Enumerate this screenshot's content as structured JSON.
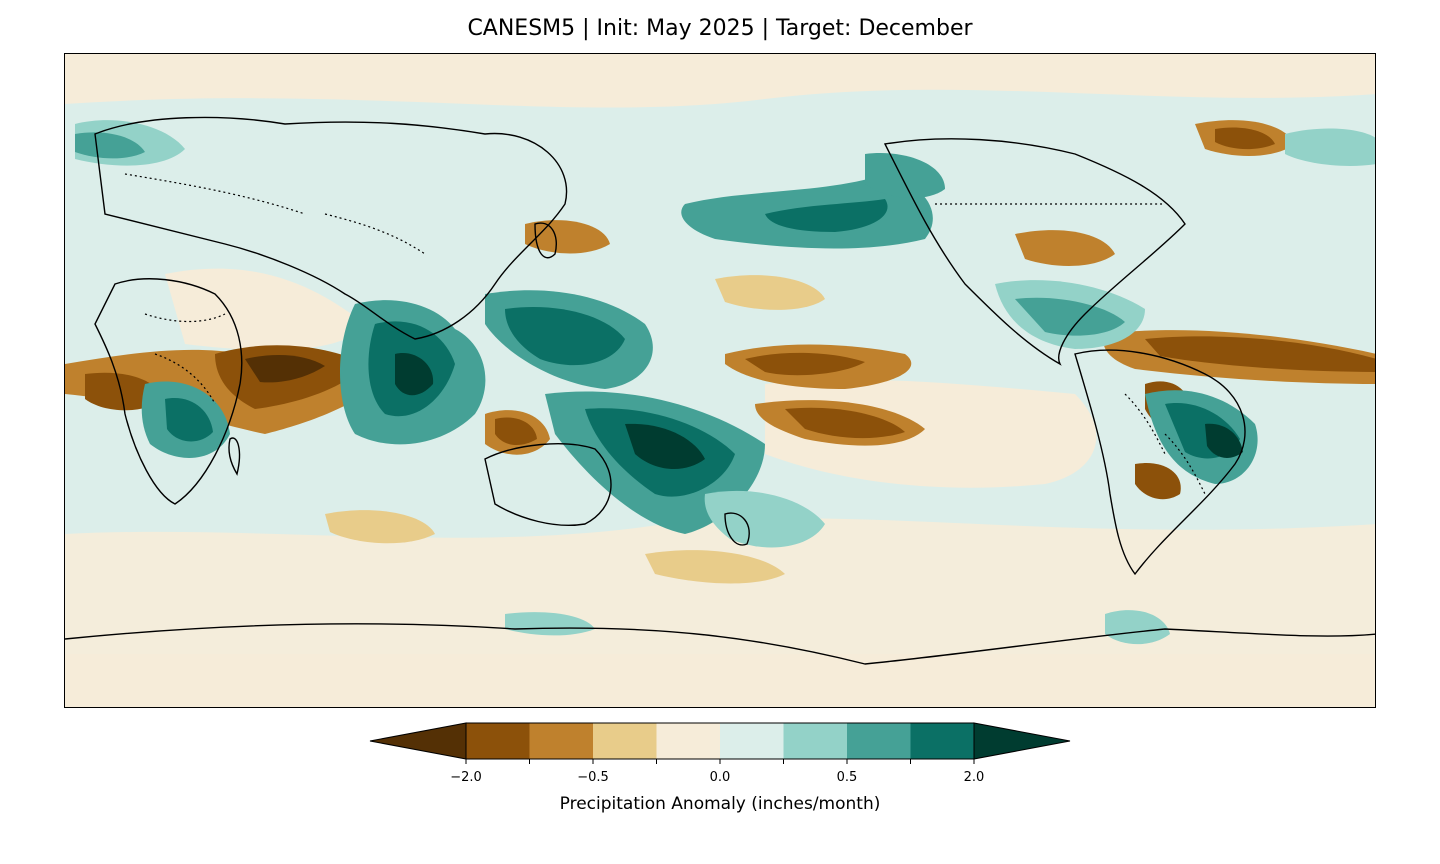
{
  "title": "CANESM5 | Init: May 2025 | Target: December",
  "colorbar": {
    "label": "Precipitation Anomaly (inches/month)",
    "ticks": [
      "−2.0",
      "−0.5",
      "0.0",
      "0.5",
      "2.0"
    ],
    "colors": [
      "#543005",
      "#8c510a",
      "#bf812d",
      "#e8cc8a",
      "#f6ecd9",
      "#dceeea",
      "#93d2c8",
      "#45a196",
      "#0b7065",
      "#003c30"
    ]
  },
  "map": {
    "projection": "PlateCarree, central longitude 180",
    "dry_color": "#8c510a",
    "wet_color": "#0b7065"
  }
}
